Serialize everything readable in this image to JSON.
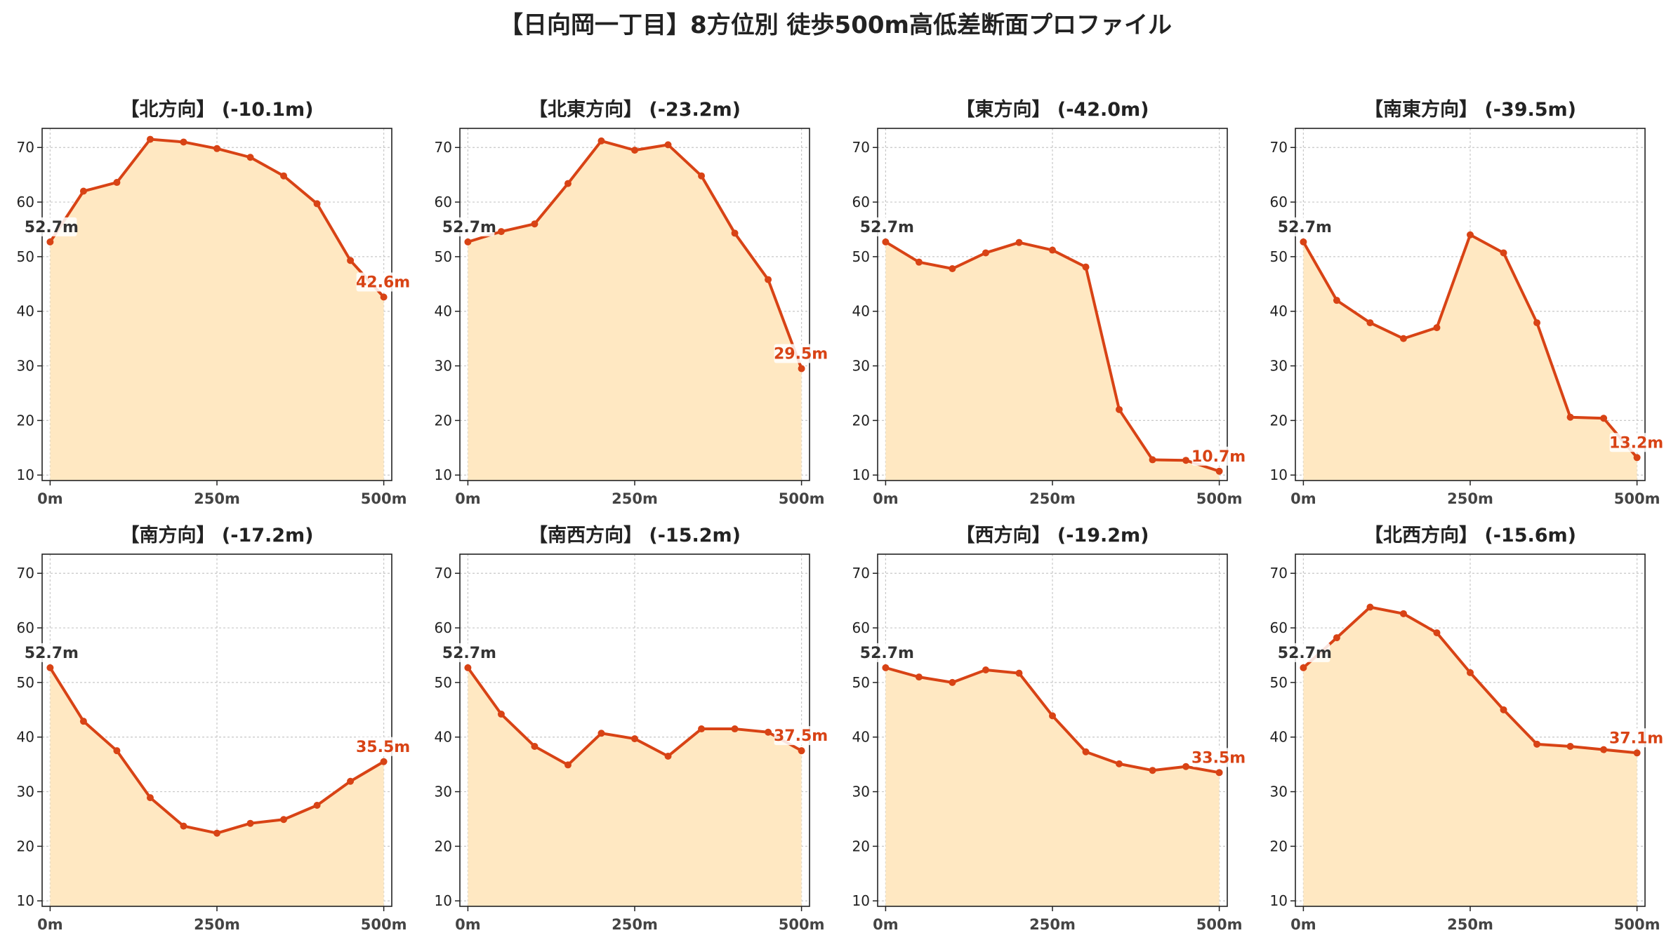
{
  "title": "【日向岡一丁目】8方位別 徒歩500m高低差断面プロファイル",
  "colors": {
    "line": "#d84315",
    "fill": "#ffe8c2",
    "grid": "#c8c8c8",
    "axis": "#222222"
  },
  "chart_data": [
    {
      "type": "area",
      "title": "【北方向】 (-10.1m)",
      "x": [
        0,
        50,
        100,
        150,
        200,
        250,
        300,
        350,
        400,
        450,
        500
      ],
      "y": [
        52.7,
        62.0,
        63.6,
        71.5,
        71.0,
        69.8,
        68.2,
        64.8,
        59.7,
        49.3,
        42.6
      ],
      "start_label": "52.7m",
      "end_label": "42.6m"
    },
    {
      "type": "area",
      "title": "【北東方向】 (-23.2m)",
      "x": [
        0,
        50,
        100,
        150,
        200,
        250,
        300,
        350,
        400,
        450,
        500
      ],
      "y": [
        52.7,
        54.6,
        56.0,
        63.4,
        71.2,
        69.5,
        70.5,
        64.8,
        54.3,
        45.8,
        29.5
      ],
      "start_label": "52.7m",
      "end_label": "29.5m"
    },
    {
      "type": "area",
      "title": "【東方向】 (-42.0m)",
      "x": [
        0,
        50,
        100,
        150,
        200,
        250,
        300,
        350,
        400,
        450,
        500
      ],
      "y": [
        52.7,
        49.0,
        47.8,
        50.7,
        52.6,
        51.2,
        48.1,
        22.0,
        12.8,
        12.7,
        10.7
      ],
      "start_label": "52.7m",
      "end_label": "10.7m"
    },
    {
      "type": "area",
      "title": "【南東方向】 (-39.5m)",
      "x": [
        0,
        50,
        100,
        150,
        200,
        250,
        300,
        350,
        400,
        450,
        500
      ],
      "y": [
        52.7,
        42.0,
        37.9,
        35.0,
        37.0,
        54.0,
        50.7,
        37.9,
        20.6,
        20.4,
        13.2
      ],
      "start_label": "52.7m",
      "end_label": "13.2m"
    },
    {
      "type": "area",
      "title": "【南方向】 (-17.2m)",
      "x": [
        0,
        50,
        100,
        150,
        200,
        250,
        300,
        350,
        400,
        450,
        500
      ],
      "y": [
        52.7,
        42.9,
        37.5,
        28.9,
        23.7,
        22.4,
        24.2,
        24.9,
        27.5,
        31.9,
        35.5
      ],
      "start_label": "52.7m",
      "end_label": "35.5m"
    },
    {
      "type": "area",
      "title": "【南西方向】 (-15.2m)",
      "x": [
        0,
        50,
        100,
        150,
        200,
        250,
        300,
        350,
        400,
        450,
        500
      ],
      "y": [
        52.7,
        44.2,
        38.3,
        34.9,
        40.7,
        39.7,
        36.5,
        41.5,
        41.5,
        40.9,
        37.5
      ],
      "start_label": "52.7m",
      "end_label": "37.5m"
    },
    {
      "type": "area",
      "title": "【西方向】 (-19.2m)",
      "x": [
        0,
        50,
        100,
        150,
        200,
        250,
        300,
        350,
        400,
        450,
        500
      ],
      "y": [
        52.7,
        51.0,
        50.0,
        52.3,
        51.7,
        43.9,
        37.3,
        35.1,
        33.9,
        34.6,
        33.5
      ],
      "start_label": "52.7m",
      "end_label": "33.5m"
    },
    {
      "type": "area",
      "title": "【北西方向】 (-15.6m)",
      "x": [
        0,
        50,
        100,
        150,
        200,
        250,
        300,
        350,
        400,
        450,
        500
      ],
      "y": [
        52.7,
        58.2,
        63.8,
        62.6,
        59.1,
        51.8,
        45.0,
        38.7,
        38.3,
        37.7,
        37.1
      ],
      "start_label": "52.7m",
      "end_label": "37.1m"
    }
  ],
  "axes": {
    "ylim": [
      9,
      73.5
    ],
    "xlim": [
      -12,
      512
    ],
    "yticks": [
      10,
      20,
      30,
      40,
      50,
      60,
      70
    ],
    "xticks": [
      0,
      250,
      500
    ],
    "xtick_labels": [
      "0m",
      "250m",
      "500m"
    ],
    "grid": true
  }
}
